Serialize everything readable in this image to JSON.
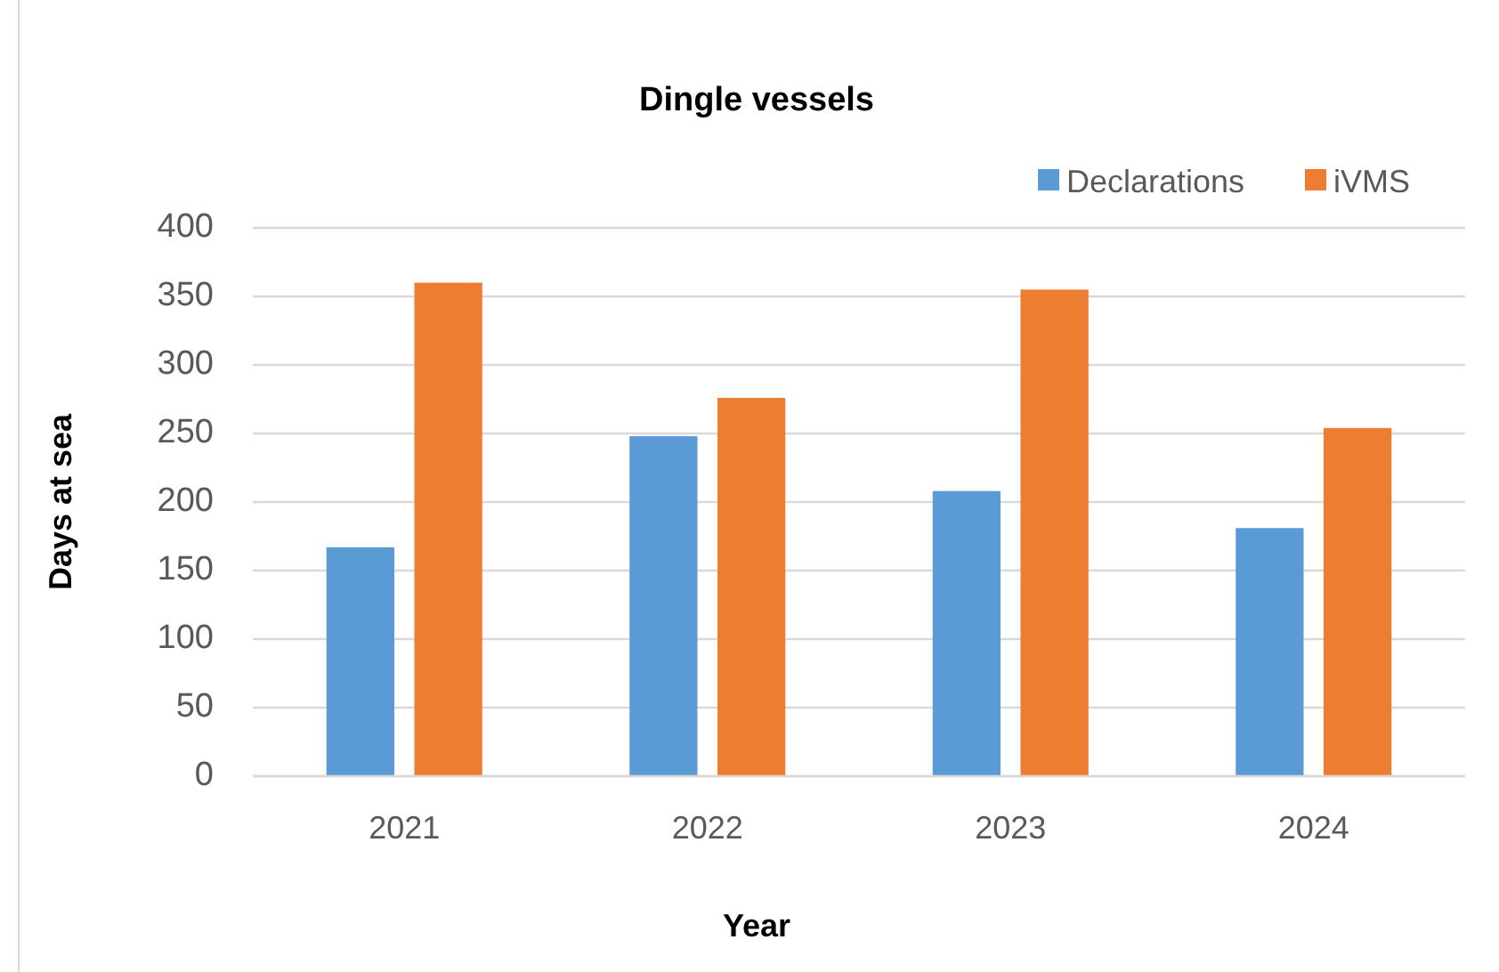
{
  "chart_data": {
    "type": "bar",
    "title": "Dingle vessels",
    "xlabel": "Year",
    "ylabel": "Days at sea",
    "categories": [
      "2021",
      "2022",
      "2023",
      "2024"
    ],
    "series": [
      {
        "name": "Declarations",
        "color": "#5b9bd5",
        "values": [
          167,
          248,
          208,
          181
        ]
      },
      {
        "name": "iVMS",
        "color": "#ed7d31",
        "values": [
          360,
          276,
          355,
          254
        ]
      }
    ],
    "ylim": [
      0,
      400
    ],
    "yticks": [
      0,
      50,
      100,
      150,
      200,
      250,
      300,
      350,
      400
    ],
    "grid": "y",
    "legend": "top right"
  }
}
